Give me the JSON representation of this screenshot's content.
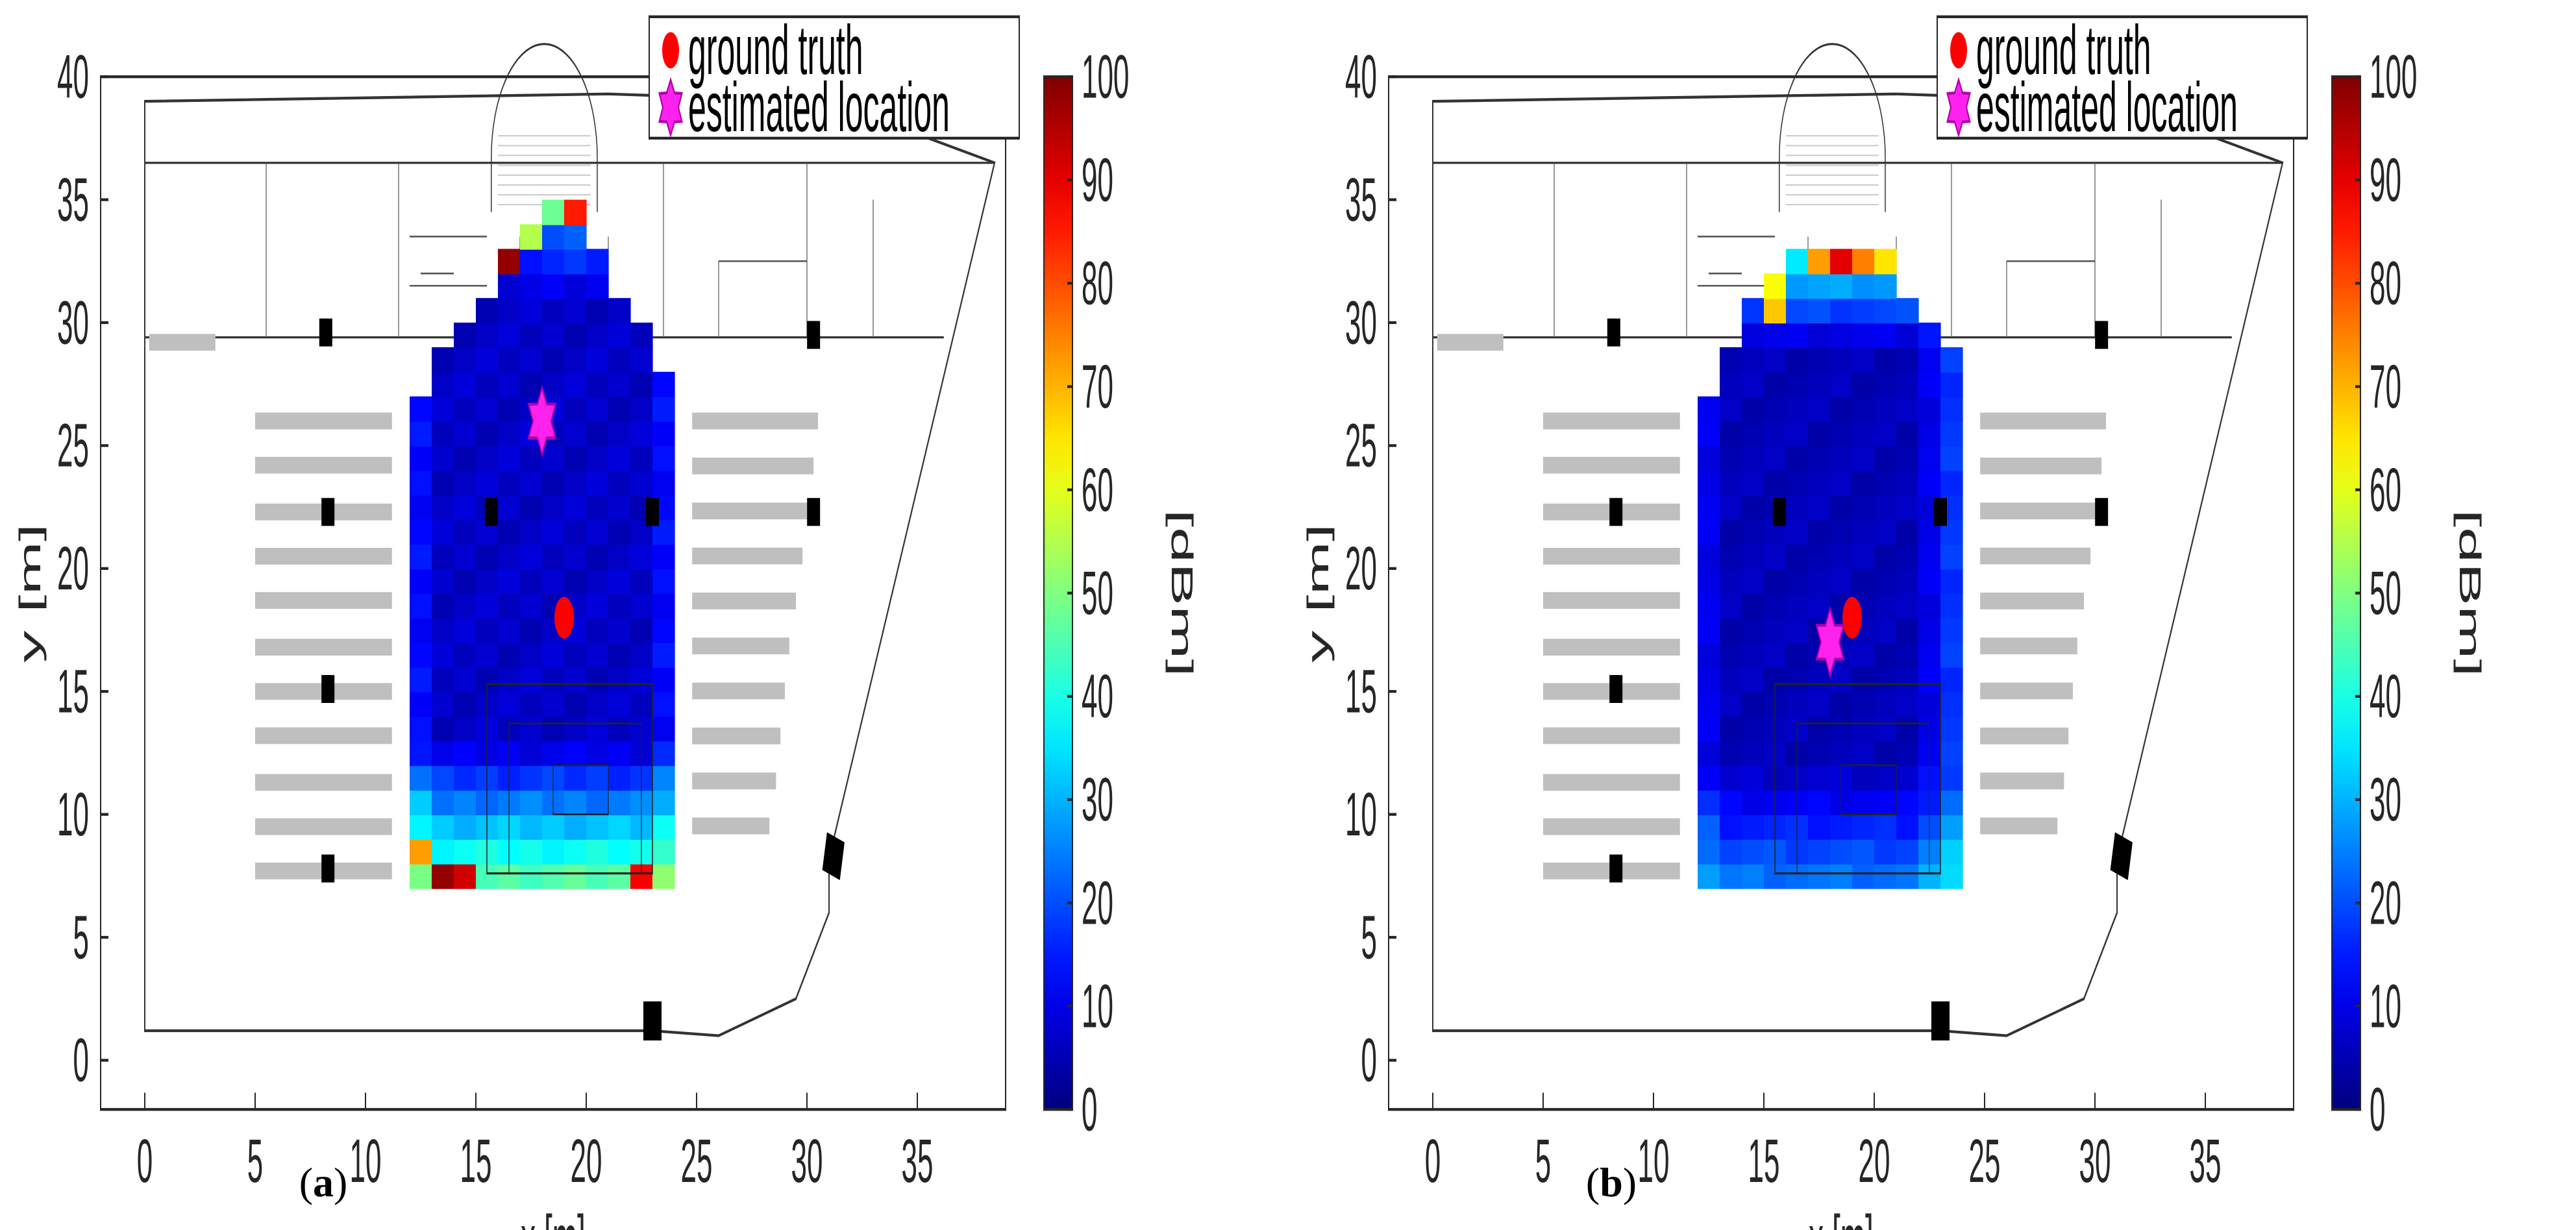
{
  "chart_data": [
    {
      "type": "heatmap",
      "caption": {
        "open": "(",
        "letter": "a",
        "close": ")"
      },
      "xlabel": "x [m]",
      "ylabel": "y [m]",
      "xlim": [
        -2,
        39
      ],
      "ylim": [
        -2,
        40
      ],
      "xticks": [
        0,
        5,
        10,
        15,
        20,
        25,
        30,
        35
      ],
      "yticks": [
        0,
        5,
        10,
        15,
        20,
        25,
        30,
        35,
        40
      ],
      "colorbar": {
        "label": "[dBm]",
        "min": 0,
        "max": 100,
        "ticks": [
          0,
          10,
          20,
          30,
          40,
          50,
          60,
          70,
          80,
          90,
          100
        ],
        "colormap": "jet"
      },
      "legend": {
        "position": "top-right",
        "entries": [
          "ground truth",
          "estimated location"
        ]
      },
      "ground_truth": [
        19,
        18
      ],
      "estimated_location": [
        18,
        26
      ],
      "heatmap": {
        "cell_size": 1,
        "x_range": [
          12,
          24
        ],
        "y_range": [
          7,
          35
        ],
        "high_cells": [
          [
            19.5,
            34.5,
            85
          ],
          [
            16.5,
            32.5,
            98
          ],
          [
            13.5,
            7.5,
            98
          ],
          [
            14.5,
            7.5,
            92
          ],
          [
            22.5,
            7.5,
            88
          ],
          [
            12.5,
            8.5,
            72
          ],
          [
            18.5,
            34.5,
            48
          ],
          [
            17.5,
            33.5,
            55
          ]
        ],
        "notes": "Low (blue) field with values rising toward the bottom rows (y 7-12) and the top tip"
      },
      "colors": {
        "ground_truth": "#ff0000",
        "estimated": "#ff22ee"
      }
    },
    {
      "type": "heatmap",
      "caption": {
        "open": "(",
        "letter": "b",
        "close": ")"
      },
      "xlabel": "x [m]",
      "ylabel": "y [m]",
      "xlim": [
        -2,
        39
      ],
      "ylim": [
        -2,
        40
      ],
      "xticks": [
        0,
        5,
        10,
        15,
        20,
        25,
        30,
        35
      ],
      "yticks": [
        0,
        5,
        10,
        15,
        20,
        25,
        30,
        35,
        40
      ],
      "colorbar": {
        "label": "[dBm]",
        "min": 0,
        "max": 100,
        "ticks": [
          0,
          10,
          20,
          30,
          40,
          50,
          60,
          70,
          80,
          90,
          100
        ],
        "colormap": "jet"
      },
      "legend": {
        "position": "top-right",
        "entries": [
          "ground truth",
          "estimated location"
        ]
      },
      "ground_truth": [
        19,
        18
      ],
      "estimated_location": [
        18,
        17
      ],
      "heatmap": {
        "cell_size": 1,
        "x_range": [
          12,
          24
        ],
        "y_range": [
          7,
          33
        ],
        "high_cells": [
          [
            18.5,
            32.5,
            90
          ],
          [
            17.5,
            32.5,
            72
          ],
          [
            19.5,
            32.5,
            75
          ],
          [
            20.5,
            32.5,
            65
          ],
          [
            15.5,
            31.5,
            62
          ],
          [
            15.5,
            30.5,
            68
          ]
        ],
        "notes": "Mostly dark blue with a warm cap at the top rows and mild rise near the bottom"
      },
      "colors": {
        "ground_truth": "#ff0000",
        "estimated": "#ff22ee"
      }
    }
  ]
}
